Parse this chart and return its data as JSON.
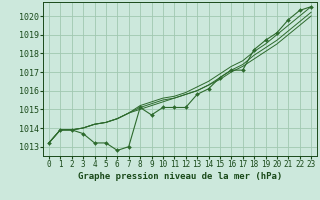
{
  "x": [
    0,
    1,
    2,
    3,
    4,
    5,
    6,
    7,
    8,
    9,
    10,
    11,
    12,
    13,
    14,
    15,
    16,
    17,
    18,
    19,
    20,
    21,
    22,
    23
  ],
  "line1": [
    1013.2,
    1013.9,
    1013.9,
    1013.7,
    1013.2,
    1013.2,
    1012.8,
    1013.0,
    1015.1,
    1014.7,
    1015.1,
    1015.1,
    1015.1,
    1015.8,
    1016.1,
    1016.7,
    1017.1,
    1017.1,
    1018.2,
    1018.7,
    1019.1,
    1019.8,
    1020.3,
    1020.5
  ],
  "line2": [
    1013.2,
    1013.9,
    1013.9,
    1014.0,
    1014.2,
    1014.3,
    1014.5,
    1014.8,
    1015.0,
    1015.2,
    1015.4,
    1015.6,
    1015.8,
    1016.0,
    1016.3,
    1016.6,
    1017.0,
    1017.3,
    1017.7,
    1018.1,
    1018.5,
    1019.0,
    1019.5,
    1020.0
  ],
  "line3": [
    1013.2,
    1013.9,
    1013.9,
    1014.0,
    1014.2,
    1014.3,
    1014.5,
    1014.8,
    1015.1,
    1015.3,
    1015.5,
    1015.6,
    1015.8,
    1016.0,
    1016.3,
    1016.7,
    1017.1,
    1017.4,
    1017.9,
    1018.3,
    1018.7,
    1019.2,
    1019.7,
    1020.2
  ],
  "line4": [
    1013.2,
    1013.9,
    1013.9,
    1014.0,
    1014.2,
    1014.3,
    1014.5,
    1014.8,
    1015.2,
    1015.4,
    1015.6,
    1015.7,
    1015.9,
    1016.2,
    1016.5,
    1016.9,
    1017.3,
    1017.6,
    1018.1,
    1018.5,
    1019.0,
    1019.5,
    1020.0,
    1020.5
  ],
  "line_color": "#2d6a2d",
  "bg_color": "#cce8dc",
  "grid_color": "#a0c8b0",
  "label_color": "#1a4a1a",
  "xlabel": "Graphe pression niveau de la mer (hPa)",
  "ylim": [
    1012.5,
    1020.75
  ],
  "xlim": [
    -0.5,
    23.5
  ],
  "yticks": [
    1013,
    1014,
    1015,
    1016,
    1017,
    1018,
    1019,
    1020
  ],
  "xticks": [
    0,
    1,
    2,
    3,
    4,
    5,
    6,
    7,
    8,
    9,
    10,
    11,
    12,
    13,
    14,
    15,
    16,
    17,
    18,
    19,
    20,
    21,
    22,
    23
  ],
  "tick_fontsize": 5.5,
  "xlabel_fontsize": 6.5
}
